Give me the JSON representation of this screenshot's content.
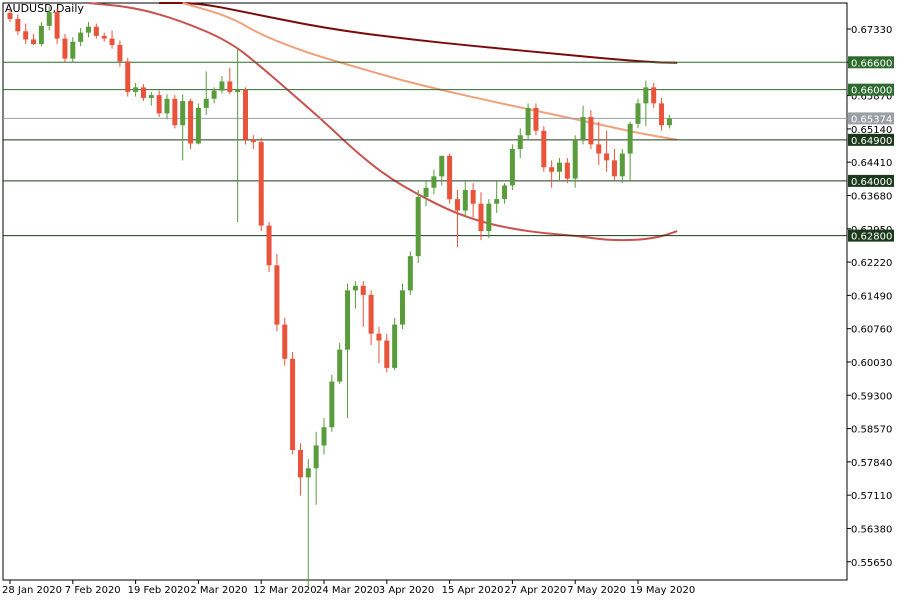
{
  "chart_data": {
    "type": "candlestick",
    "symbol_label": "AUDUSD,Daily",
    "colors": {
      "bull": "#5a9b3c",
      "bear": "#e8533a",
      "frame": "#000000",
      "levels": "#2e6b2e",
      "price_box": "#9aa0a6"
    },
    "ylim": [
      0.5525,
      0.679
    ],
    "y_ticks": [
      "0.67330",
      "0.66600",
      "0.65870",
      "0.65140",
      "0.64410",
      "0.63680",
      "0.62950",
      "0.62220",
      "0.61490",
      "0.60760",
      "0.60030",
      "0.59300",
      "0.58570",
      "0.57840",
      "0.57110",
      "0.56380",
      "0.55650"
    ],
    "x_labels": [
      {
        "label": "28 Jan 2020",
        "bar": 0
      },
      {
        "label": "7 Feb 2020",
        "bar": 8
      },
      {
        "label": "19 Feb 2020",
        "bar": 16
      },
      {
        "label": "2 Mar 2020",
        "bar": 24
      },
      {
        "label": "12 Mar 2020",
        "bar": 32
      },
      {
        "label": "24 Mar 2020",
        "bar": 40
      },
      {
        "label": "3 Apr 2020",
        "bar": 48
      },
      {
        "label": "15 Apr 2020",
        "bar": 56
      },
      {
        "label": "27 Apr 2020",
        "bar": 64
      },
      {
        "label": "7 May 2020",
        "bar": 72
      },
      {
        "label": "19 May 2020",
        "bar": 80
      }
    ],
    "levels": [
      {
        "value": 0.666,
        "label": "0.66600",
        "color": "#2e6b2e"
      },
      {
        "value": 0.66,
        "label": "0.66000",
        "color": "#2e6b2e"
      },
      {
        "value": 0.6537,
        "label": "0.65374",
        "color": "#9aa0a6"
      },
      {
        "value": 0.649,
        "label": "0.64900",
        "color": "#1b3a1b"
      },
      {
        "value": 0.64,
        "label": "0.64000",
        "color": "#1b3a1b"
      },
      {
        "value": 0.628,
        "label": "0.62800",
        "color": "#1b3a1b"
      }
    ],
    "candles": [
      [
        0.6768,
        0.6778,
        0.6748,
        0.6755
      ],
      [
        0.6755,
        0.6765,
        0.672,
        0.6728
      ],
      [
        0.6728,
        0.6745,
        0.67,
        0.671
      ],
      [
        0.671,
        0.6722,
        0.6698,
        0.67
      ],
      [
        0.67,
        0.6748,
        0.6695,
        0.674
      ],
      [
        0.674,
        0.6782,
        0.673,
        0.677
      ],
      [
        0.677,
        0.6778,
        0.67,
        0.6712
      ],
      [
        0.6712,
        0.6722,
        0.666,
        0.6668
      ],
      [
        0.6668,
        0.6715,
        0.666,
        0.6705
      ],
      [
        0.6705,
        0.6735,
        0.6695,
        0.6725
      ],
      [
        0.6725,
        0.6748,
        0.6715,
        0.6738
      ],
      [
        0.6738,
        0.6745,
        0.6712,
        0.6718
      ],
      [
        0.6718,
        0.6725,
        0.6705,
        0.6712
      ],
      [
        0.6712,
        0.673,
        0.669,
        0.6698
      ],
      [
        0.6698,
        0.6708,
        0.665,
        0.6662
      ],
      [
        0.6662,
        0.667,
        0.6585,
        0.6595
      ],
      [
        0.6595,
        0.6615,
        0.6585,
        0.6605
      ],
      [
        0.6605,
        0.6612,
        0.6575,
        0.6582
      ],
      [
        0.6582,
        0.6595,
        0.6565,
        0.6588
      ],
      [
        0.6588,
        0.6598,
        0.654,
        0.6548
      ],
      [
        0.6548,
        0.659,
        0.6535,
        0.658
      ],
      [
        0.658,
        0.6588,
        0.6515,
        0.6522
      ],
      [
        0.6522,
        0.659,
        0.6445,
        0.6575
      ],
      [
        0.6575,
        0.658,
        0.647,
        0.6482
      ],
      [
        0.6482,
        0.657,
        0.648,
        0.656
      ],
      [
        0.656,
        0.664,
        0.6545,
        0.658
      ],
      [
        0.658,
        0.6605,
        0.657,
        0.6598
      ],
      [
        0.6598,
        0.663,
        0.6592,
        0.6618
      ],
      [
        0.6618,
        0.6648,
        0.659,
        0.6595
      ],
      [
        0.6595,
        0.669,
        0.631,
        0.66
      ],
      [
        0.66,
        0.6605,
        0.648,
        0.649
      ],
      [
        0.649,
        0.65,
        0.647,
        0.6485
      ],
      [
        0.6485,
        0.6495,
        0.629,
        0.6302
      ],
      [
        0.6302,
        0.631,
        0.62,
        0.6215
      ],
      [
        0.6215,
        0.624,
        0.607,
        0.6085
      ],
      [
        0.6085,
        0.61,
        0.5995,
        0.601
      ],
      [
        0.601,
        0.6025,
        0.58,
        0.581
      ],
      [
        0.581,
        0.5825,
        0.571,
        0.575
      ],
      [
        0.575,
        0.579,
        0.551,
        0.577
      ],
      [
        0.577,
        0.585,
        0.569,
        0.582
      ],
      [
        0.582,
        0.588,
        0.58,
        0.586
      ],
      [
        0.586,
        0.5975,
        0.585,
        0.596
      ],
      [
        0.596,
        0.6045,
        0.5955,
        0.603
      ],
      [
        0.603,
        0.6175,
        0.588,
        0.616
      ],
      [
        0.616,
        0.618,
        0.612,
        0.617
      ],
      [
        0.617,
        0.618,
        0.608,
        0.615
      ],
      [
        0.615,
        0.616,
        0.604,
        0.6065
      ],
      [
        0.6065,
        0.608,
        0.6,
        0.605
      ],
      [
        0.605,
        0.6065,
        0.598,
        0.599
      ],
      [
        0.599,
        0.61,
        0.5985,
        0.6085
      ],
      [
        0.6085,
        0.6175,
        0.6075,
        0.616
      ],
      [
        0.616,
        0.6245,
        0.615,
        0.6235
      ],
      [
        0.6235,
        0.638,
        0.622,
        0.6365
      ],
      [
        0.6365,
        0.64,
        0.6345,
        0.6385
      ],
      [
        0.6385,
        0.6425,
        0.637,
        0.641
      ],
      [
        0.641,
        0.6455,
        0.639,
        0.6455
      ],
      [
        0.6455,
        0.646,
        0.635,
        0.636
      ],
      [
        0.636,
        0.638,
        0.6255,
        0.6335
      ],
      [
        0.6335,
        0.64,
        0.632,
        0.638
      ],
      [
        0.638,
        0.6395,
        0.632,
        0.635
      ],
      [
        0.635,
        0.6375,
        0.627,
        0.629
      ],
      [
        0.629,
        0.636,
        0.6275,
        0.635
      ],
      [
        0.635,
        0.64,
        0.633,
        0.636
      ],
      [
        0.636,
        0.6395,
        0.635,
        0.639
      ],
      [
        0.639,
        0.648,
        0.638,
        0.647
      ],
      [
        0.647,
        0.6515,
        0.645,
        0.65
      ],
      [
        0.65,
        0.657,
        0.649,
        0.656
      ],
      [
        0.656,
        0.657,
        0.65,
        0.651
      ],
      [
        0.651,
        0.652,
        0.642,
        0.643
      ],
      [
        0.643,
        0.6445,
        0.6385,
        0.642
      ],
      [
        0.642,
        0.645,
        0.64,
        0.644
      ],
      [
        0.644,
        0.645,
        0.6395,
        0.6405
      ],
      [
        0.6405,
        0.65,
        0.6385,
        0.649
      ],
      [
        0.649,
        0.6565,
        0.648,
        0.654
      ],
      [
        0.654,
        0.6555,
        0.647,
        0.648
      ],
      [
        0.648,
        0.653,
        0.6435,
        0.646
      ],
      [
        0.646,
        0.651,
        0.642,
        0.6445
      ],
      [
        0.6445,
        0.647,
        0.64,
        0.641
      ],
      [
        0.641,
        0.647,
        0.6395,
        0.646
      ],
      [
        0.646,
        0.653,
        0.64,
        0.6525
      ],
      [
        0.6525,
        0.658,
        0.6515,
        0.657
      ],
      [
        0.657,
        0.662,
        0.652,
        0.6605
      ],
      [
        0.6605,
        0.6615,
        0.656,
        0.657
      ],
      [
        0.657,
        0.6582,
        0.651,
        0.6522
      ],
      [
        0.6522,
        0.6545,
        0.6515,
        0.6537
      ]
    ],
    "moving_averages": [
      {
        "color": "#7a0a0a",
        "points": [
          [
            19,
            0.68
          ],
          [
            24,
            0.679
          ],
          [
            30,
            0.677
          ],
          [
            40,
            0.6735
          ],
          [
            50,
            0.6712
          ],
          [
            60,
            0.6694
          ],
          [
            70,
            0.6678
          ],
          [
            76,
            0.6668
          ],
          [
            82,
            0.666
          ],
          [
            85,
            0.6659
          ]
        ]
      },
      {
        "color": "#f0a07a",
        "points": [
          [
            22,
            0.6795
          ],
          [
            28,
            0.676
          ],
          [
            32,
            0.672
          ],
          [
            38,
            0.668
          ],
          [
            44,
            0.665
          ],
          [
            50,
            0.662
          ],
          [
            56,
            0.6595
          ],
          [
            62,
            0.6572
          ],
          [
            68,
            0.655
          ],
          [
            74,
            0.6528
          ],
          [
            80,
            0.6505
          ],
          [
            85,
            0.649
          ]
        ]
      },
      {
        "color": "#c8524e",
        "points": [
          [
            10,
            0.68
          ],
          [
            16,
            0.678
          ],
          [
            22,
            0.675
          ],
          [
            28,
            0.6705
          ],
          [
            32,
            0.665
          ],
          [
            36,
            0.659
          ],
          [
            40,
            0.653
          ],
          [
            44,
            0.6465
          ],
          [
            48,
            0.641
          ],
          [
            52,
            0.637
          ],
          [
            56,
            0.6335
          ],
          [
            60,
            0.631
          ],
          [
            64,
            0.6295
          ],
          [
            68,
            0.6285
          ],
          [
            72,
            0.628
          ],
          [
            76,
            0.627
          ],
          [
            80,
            0.627
          ],
          [
            83,
            0.6278
          ],
          [
            85,
            0.629
          ]
        ]
      }
    ]
  }
}
